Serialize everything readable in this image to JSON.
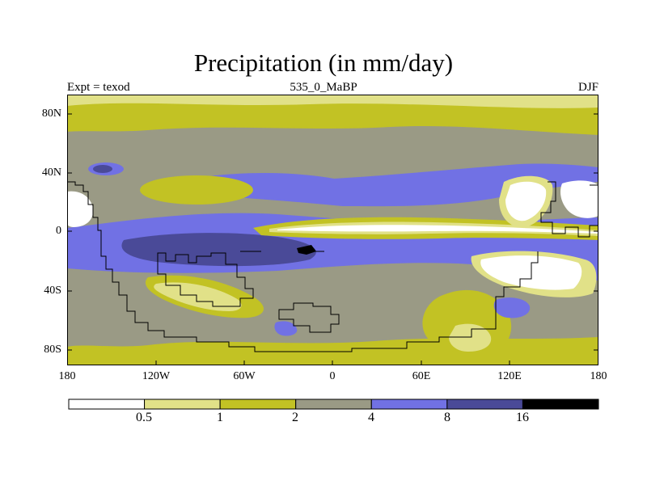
{
  "title": "Precipitation (in mm/day)",
  "subtitle_left": "Expt = texod",
  "subtitle_center": "535_0_MaBP",
  "subtitle_right": "DJF",
  "lat_ticks": [
    "80N",
    "40N",
    "0",
    "40S",
    "80S"
  ],
  "lon_ticks": [
    "180",
    "120W",
    "60W",
    "0",
    "60E",
    "120E",
    "180"
  ],
  "colorbar": {
    "levels": [
      "0.5",
      "1",
      "2",
      "4",
      "8",
      "16"
    ],
    "colors": [
      "#ffffff",
      "#e1e188",
      "#c2c224",
      "#9a9a85",
      "#7171e4",
      "#4a4a98",
      "#000000"
    ]
  },
  "map_colors": {
    "very_dry": "#ffffff",
    "dry": "#e1e188",
    "low": "#c2c224",
    "moderate": "#9a9a85",
    "wet": "#7171e4",
    "very_wet": "#4a4a98",
    "extreme": "#000000",
    "coastline": "#000000"
  }
}
